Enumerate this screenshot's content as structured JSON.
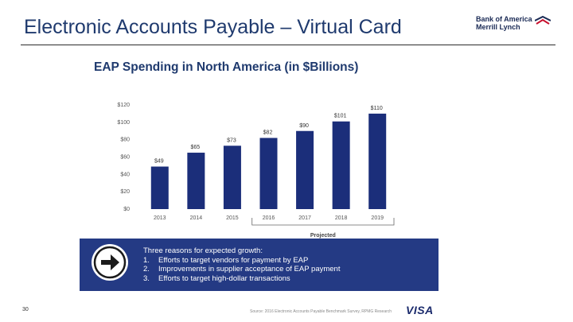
{
  "slide": {
    "title": "Electronic Accounts Payable – Virtual Card",
    "logo_line1": "Bank of America",
    "logo_line2": "Merrill Lynch",
    "page_number": "30",
    "source": "Source: 2016 Electronic Accounts Payable Benchmark Survey, RPMG Research",
    "visa_logo": "VISA",
    "colors": {
      "title": "#1f3a6e",
      "bar": "#1b2e7a",
      "box": "#243a84",
      "logo_flag": "#c8102e"
    }
  },
  "growth": {
    "heading": "Three reasons for expected growth:",
    "icon": "right-arrow-icon",
    "items": [
      {
        "num": "1.",
        "text": "Efforts to target vendors for payment by EAP"
      },
      {
        "num": "2.",
        "text": "Improvements in supplier acceptance of EAP payment"
      },
      {
        "num": "3.",
        "text": "Efforts to target high-dollar transactions"
      }
    ]
  },
  "chart_data": {
    "type": "bar",
    "title": "EAP Spending in North America (in $Billions)",
    "categories": [
      "2013",
      "2014",
      "2015",
      "2016",
      "2017",
      "2018",
      "2019"
    ],
    "values": [
      49,
      65,
      73,
      82,
      90,
      101,
      110
    ],
    "value_labels": [
      "$49",
      "$65",
      "$73",
      "$82",
      "$90",
      "$101",
      "$110"
    ],
    "ylim": [
      0,
      120
    ],
    "yticks": [
      0,
      20,
      40,
      60,
      80,
      100,
      120
    ],
    "ytick_labels": [
      "$0",
      "$20",
      "$40",
      "$60",
      "$80",
      "$100",
      "$120"
    ],
    "xlabel": "",
    "ylabel": "",
    "grid": false,
    "projected_label": "Projected",
    "projected_from": "2016"
  }
}
